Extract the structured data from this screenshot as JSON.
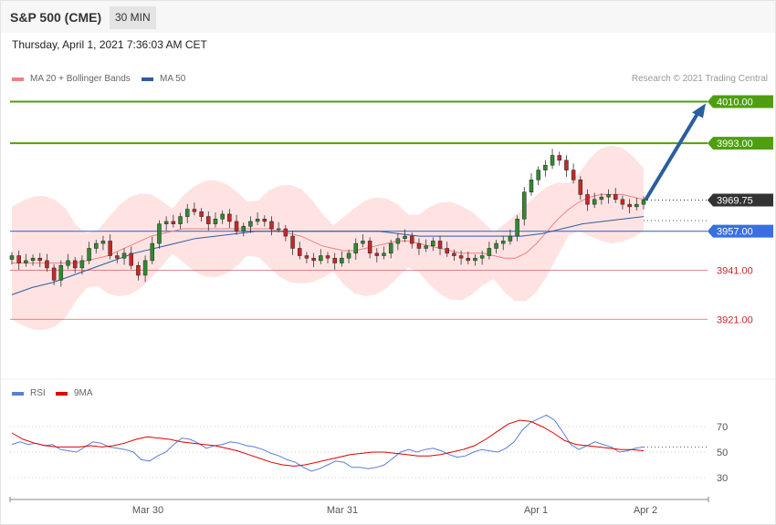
{
  "header": {
    "title": "S&P 500 (CME)",
    "interval": "30 MIN",
    "timestamp": "Thursday, April 1, 2021 7:36:03 AM CET",
    "copyright": "Research © 2021 Trading Central"
  },
  "legend": [
    {
      "label": "MA 20 + Bollinger Bands",
      "color": "#f08080"
    },
    {
      "label": "MA 50",
      "color": "#2e5c9e"
    }
  ],
  "rsi_legend": [
    {
      "label": "RSI",
      "color": "#5b7fd6"
    },
    {
      "label": "9MA",
      "color": "#e00000"
    }
  ],
  "colors": {
    "bull": "#2e8b2e",
    "bear": "#c62828",
    "resistance": "#4f9e0f",
    "support": "#3a6fe0",
    "pivot": "#c62828",
    "current": "#333333",
    "band_fill": "#ffdede",
    "arrow": "#2b5e9e"
  },
  "chart_data": [
    {
      "type": "candlestick",
      "ylim": [
        3898,
        4018
      ],
      "x_tick_labels": [
        "Mar 30",
        "Mar 31",
        "Apr 1",
        "Apr 2"
      ],
      "levels": [
        {
          "label": "4010.00",
          "value": 4010.0,
          "kind": "resistance"
        },
        {
          "label": "3993.00",
          "value": 3993.0,
          "kind": "resistance"
        },
        {
          "label": "3969.75",
          "value": 3969.75,
          "kind": "current"
        },
        {
          "label": "3957.00",
          "value": 3957.0,
          "kind": "support"
        },
        {
          "label": "3941.00",
          "value": 3941.0,
          "kind": "pivot"
        },
        {
          "label": "3921.00",
          "value": 3921.0,
          "kind": "pivot"
        }
      ],
      "close": [
        3947,
        3944,
        3945,
        3946,
        3945,
        3942,
        3937,
        3943,
        3945,
        3942,
        3945,
        3950,
        3952,
        3953,
        3947,
        3946,
        3948,
        3943,
        3939,
        3945,
        3952,
        3960,
        3961,
        3960,
        3963,
        3966,
        3965,
        3963,
        3960,
        3962,
        3964,
        3961,
        3957,
        3959,
        3961,
        3962,
        3961,
        3958,
        3958,
        3955,
        3950,
        3947,
        3946,
        3945,
        3947,
        3946,
        3944,
        3946,
        3948,
        3952,
        3953,
        3948,
        3947,
        3948,
        3952,
        3954,
        3955,
        3952,
        3950,
        3951,
        3953,
        3950,
        3948,
        3947,
        3946,
        3945,
        3946,
        3947,
        3950,
        3952,
        3953,
        3955,
        3962,
        3973,
        3978,
        3982,
        3984,
        3988,
        3986,
        3982,
        3978,
        3972,
        3968,
        3970,
        3971,
        3972,
        3970,
        3968,
        3967,
        3968,
        3969.75
      ],
      "series": [
        {
          "name": "MA 20 + Bollinger Bands",
          "values": [
            3944,
            3944,
            3944,
            3944,
            3944,
            3944,
            3944,
            3945,
            3946,
            3947,
            3949,
            3951,
            3953,
            3955,
            3956,
            3957,
            3958,
            3958,
            3958,
            3958,
            3958,
            3958,
            3958,
            3958,
            3958,
            3957,
            3956,
            3955,
            3953,
            3951,
            3950,
            3949,
            3949,
            3950,
            3951,
            3952,
            3953,
            3953,
            3952,
            3951,
            3950,
            3949,
            3948,
            3948,
            3948,
            3947,
            3946,
            3946,
            3948,
            3952,
            3957,
            3962,
            3966,
            3969,
            3971,
            3972,
            3972,
            3972,
            3971,
            3970
          ]
        },
        {
          "name": "MA 50",
          "values": [
            3931,
            3934,
            3936,
            3939,
            3942,
            3945,
            3948,
            3950,
            3952,
            3954,
            3955,
            3956,
            3957,
            3957,
            3957,
            3957,
            3957,
            3957,
            3957,
            3956,
            3955,
            3955,
            3955,
            3955,
            3955,
            3955,
            3956,
            3958,
            3960,
            3961,
            3962,
            3963
          ]
        }
      ]
    },
    {
      "type": "line",
      "name": "RSI",
      "ylim": [
        15,
        90
      ],
      "y_tick_labels": [
        "70",
        "50",
        "30"
      ],
      "series": [
        {
          "name": "RSI",
          "values": [
            56,
            58,
            56,
            57,
            55,
            56,
            52,
            51,
            50,
            54,
            58,
            57,
            54,
            53,
            52,
            50,
            44,
            43,
            47,
            50,
            56,
            61,
            60,
            57,
            53,
            55,
            56,
            58,
            57,
            55,
            54,
            52,
            49,
            47,
            44,
            42,
            38,
            35,
            37,
            40,
            43,
            42,
            38,
            38,
            37,
            38,
            40,
            45,
            50,
            52,
            50,
            52,
            53,
            51,
            48,
            46,
            47,
            50,
            52,
            51,
            50,
            53,
            58,
            67,
            73,
            76,
            79,
            75,
            66,
            56,
            52,
            55,
            58,
            56,
            54,
            50,
            51,
            53,
            54
          ]
        },
        {
          "name": "9MA",
          "values": [
            65,
            60,
            57,
            55,
            54,
            54,
            54,
            55,
            54,
            55,
            57,
            60,
            62,
            61,
            60,
            58,
            57,
            56,
            55,
            53,
            51,
            48,
            45,
            42,
            40,
            39,
            40,
            42,
            44,
            46,
            48,
            49,
            50,
            50,
            49,
            48,
            47,
            47,
            48,
            50,
            52,
            55,
            60,
            66,
            72,
            75,
            74,
            70,
            65,
            59,
            56,
            55,
            54,
            53,
            52,
            52,
            51
          ]
        }
      ]
    }
  ]
}
